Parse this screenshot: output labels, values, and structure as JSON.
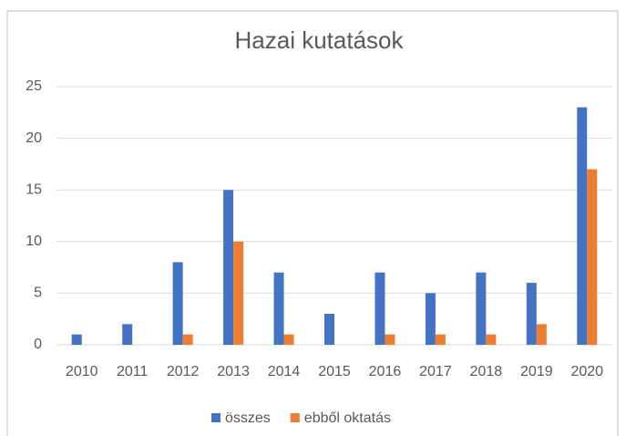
{
  "chart_data": {
    "type": "bar",
    "title": "Hazai kutatások",
    "categories": [
      "2010",
      "2011",
      "2012",
      "2013",
      "2014",
      "2015",
      "2016",
      "2017",
      "2018",
      "2019",
      "2020"
    ],
    "series": [
      {
        "name": "összes",
        "color": "#4472c4",
        "values": [
          1,
          2,
          8,
          15,
          7,
          3,
          7,
          5,
          7,
          6,
          23
        ]
      },
      {
        "name": "ebből oktatás",
        "color": "#ed7d31",
        "values": [
          0,
          0,
          1,
          10,
          1,
          0,
          1,
          1,
          1,
          2,
          17
        ]
      }
    ],
    "ylim": [
      0,
      25
    ],
    "yticks": [
      0,
      5,
      10,
      15,
      20,
      25
    ],
    "grid": true,
    "legend": "bottom"
  }
}
